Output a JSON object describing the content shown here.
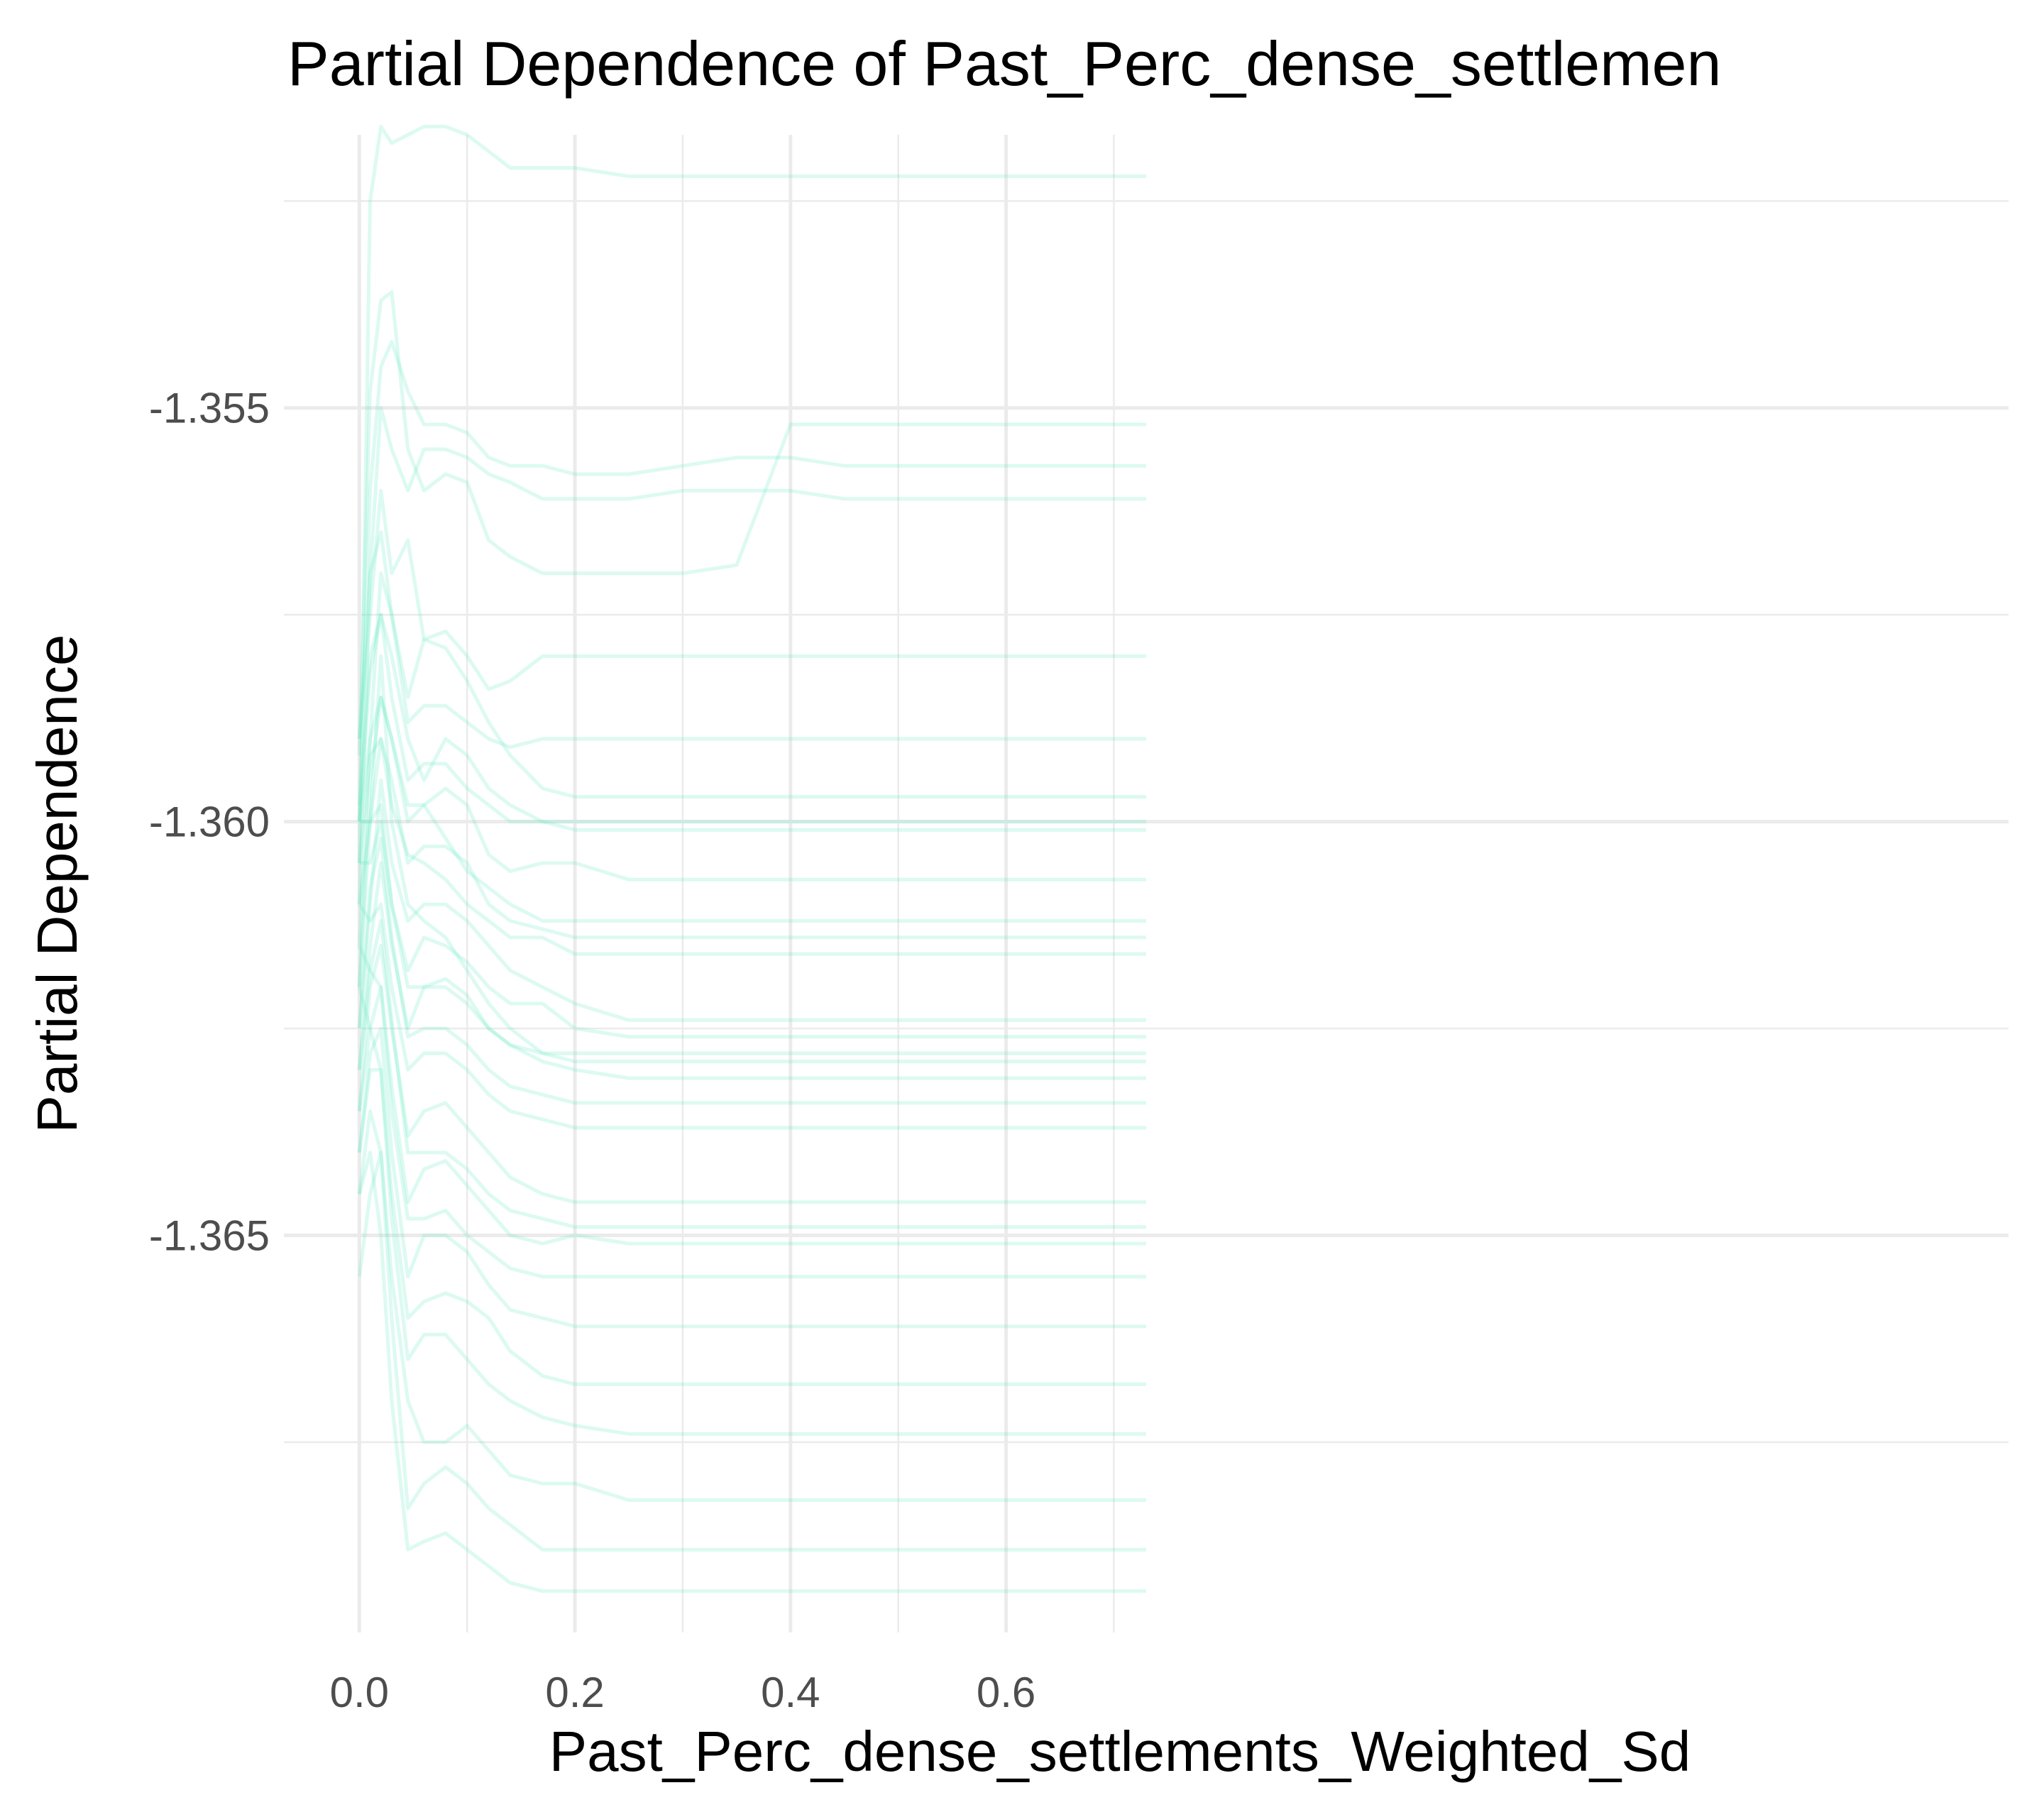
{
  "chart_data": {
    "type": "line",
    "title": "Partial Dependence of Past_Perc_dense_settlemen",
    "xlabel": "Past_Perc_dense_settlements_Weighted_Sd",
    "ylabel": "Partial Dependence",
    "xlim": [
      -0.07,
      1.53
    ],
    "ylim": [
      -1.3698,
      -1.3517
    ],
    "x_ticks": [
      0.0,
      0.2,
      0.4,
      0.6
    ],
    "x_tick_labels": [
      "0.0",
      "0.2",
      "0.4",
      "0.6"
    ],
    "y_ticks": [
      -1.355,
      -1.36,
      -1.365
    ],
    "y_tick_labels": [
      "-1.355",
      "-1.360",
      "-1.365"
    ],
    "grid": true,
    "legend": "none",
    "line_color": "#5fe8bd",
    "x": [
      0.0,
      0.01,
      0.02,
      0.03,
      0.045,
      0.06,
      0.08,
      0.1,
      0.12,
      0.14,
      0.17,
      0.2,
      0.25,
      0.3,
      0.35,
      0.4,
      0.45,
      0.5,
      0.55,
      0.6,
      0.65,
      0.7,
      0.73
    ],
    "series": [
      {
        "values": [
          -1.3605,
          -1.3525,
          -1.3516,
          -1.3518,
          -1.3517,
          -1.3516,
          -1.3516,
          -1.3517,
          -1.3519,
          -1.3521,
          -1.3521,
          -1.3521,
          -1.3522,
          -1.3522,
          -1.3522,
          -1.3522,
          -1.3522,
          -1.3522,
          -1.3522,
          -1.3522,
          -1.3522,
          -1.3522,
          -1.3522
        ]
      },
      {
        "values": [
          -1.3592,
          -1.3548,
          -1.3537,
          -1.3536,
          -1.3555,
          -1.356,
          -1.3558,
          -1.3559,
          -1.3566,
          -1.3568,
          -1.357,
          -1.357,
          -1.357,
          -1.357,
          -1.3569,
          -1.3552,
          -1.3552,
          -1.3552,
          -1.3552,
          -1.3552,
          -1.3552,
          -1.3552,
          -1.3552
        ]
      },
      {
        "values": [
          -1.36,
          -1.356,
          -1.3545,
          -1.3542,
          -1.3548,
          -1.3552,
          -1.3552,
          -1.3553,
          -1.3556,
          -1.3557,
          -1.3557,
          -1.3558,
          -1.3558,
          -1.3557,
          -1.3556,
          -1.3556,
          -1.3557,
          -1.3557,
          -1.3557,
          -1.3557,
          -1.3557,
          -1.3557,
          -1.3557
        ]
      },
      {
        "values": [
          -1.361,
          -1.357,
          -1.355,
          -1.3555,
          -1.356,
          -1.3555,
          -1.3555,
          -1.3556,
          -1.3558,
          -1.3559,
          -1.3561,
          -1.3561,
          -1.3561,
          -1.356,
          -1.356,
          -1.356,
          -1.3561,
          -1.3561,
          -1.3561,
          -1.3561,
          -1.3561,
          -1.3561,
          -1.3561
        ]
      },
      {
        "values": [
          -1.359,
          -1.3575,
          -1.356,
          -1.357,
          -1.3566,
          -1.3578,
          -1.3577,
          -1.358,
          -1.3584,
          -1.3583,
          -1.358,
          -1.358,
          -1.358,
          -1.358,
          -1.358,
          -1.358,
          -1.358,
          -1.358,
          -1.358,
          -1.358,
          -1.358,
          -1.358,
          -1.358
        ]
      },
      {
        "values": [
          -1.3615,
          -1.359,
          -1.357,
          -1.3575,
          -1.3585,
          -1.3578,
          -1.3579,
          -1.3583,
          -1.3588,
          -1.3592,
          -1.3596,
          -1.3597,
          -1.3597,
          -1.3597,
          -1.3597,
          -1.3597,
          -1.3597,
          -1.3597,
          -1.3597,
          -1.3597,
          -1.3597,
          -1.3597,
          -1.3597
        ]
      },
      {
        "values": [
          -1.3598,
          -1.358,
          -1.3575,
          -1.358,
          -1.359,
          -1.3595,
          -1.359,
          -1.3592,
          -1.3596,
          -1.3598,
          -1.36,
          -1.3601,
          -1.3601,
          -1.3601,
          -1.3601,
          -1.3601,
          -1.3601,
          -1.3601,
          -1.3601,
          -1.3601,
          -1.3601,
          -1.3601,
          -1.3601
        ]
      },
      {
        "values": [
          -1.362,
          -1.3595,
          -1.3585,
          -1.359,
          -1.36,
          -1.3598,
          -1.3596,
          -1.3598,
          -1.3604,
          -1.3606,
          -1.3605,
          -1.3605,
          -1.3607,
          -1.3607,
          -1.3607,
          -1.3607,
          -1.3607,
          -1.3607,
          -1.3607,
          -1.3607,
          -1.3607,
          -1.3607,
          -1.3607
        ]
      },
      {
        "values": [
          -1.36,
          -1.36,
          -1.359,
          -1.3595,
          -1.3605,
          -1.3603,
          -1.3603,
          -1.3605,
          -1.361,
          -1.3612,
          -1.3613,
          -1.3614,
          -1.3614,
          -1.3614,
          -1.3614,
          -1.3614,
          -1.3614,
          -1.3614,
          -1.3614,
          -1.3614,
          -1.3614,
          -1.3614,
          -1.3614
        ]
      },
      {
        "values": [
          -1.3625,
          -1.361,
          -1.3595,
          -1.3605,
          -1.3612,
          -1.361,
          -1.361,
          -1.3612,
          -1.3615,
          -1.3618,
          -1.362,
          -1.3622,
          -1.3624,
          -1.3624,
          -1.3624,
          -1.3624,
          -1.3624,
          -1.3624,
          -1.3624,
          -1.3624,
          -1.3624,
          -1.3624,
          -1.3624
        ]
      },
      {
        "values": [
          -1.3605,
          -1.3605,
          -1.36,
          -1.361,
          -1.3618,
          -1.3614,
          -1.3615,
          -1.3617,
          -1.362,
          -1.3622,
          -1.3622,
          -1.3625,
          -1.3626,
          -1.3626,
          -1.3626,
          -1.3626,
          -1.3626,
          -1.3626,
          -1.3626,
          -1.3626,
          -1.3626,
          -1.3626,
          -1.3626
        ]
      },
      {
        "values": [
          -1.363,
          -1.3615,
          -1.3605,
          -1.3615,
          -1.3625,
          -1.362,
          -1.3619,
          -1.3621,
          -1.3625,
          -1.3627,
          -1.3629,
          -1.363,
          -1.3631,
          -1.3631,
          -1.3631,
          -1.3631,
          -1.3631,
          -1.3631,
          -1.3631,
          -1.3631,
          -1.3631,
          -1.3631,
          -1.3631
        ]
      },
      {
        "values": [
          -1.361,
          -1.3612,
          -1.361,
          -1.362,
          -1.363,
          -1.3628,
          -1.3628,
          -1.363,
          -1.3633,
          -1.3635,
          -1.3636,
          -1.3637,
          -1.3637,
          -1.3637,
          -1.3637,
          -1.3637,
          -1.3637,
          -1.3637,
          -1.3637,
          -1.3637,
          -1.3637,
          -1.3637,
          -1.3637
        ]
      },
      {
        "values": [
          -1.3635,
          -1.362,
          -1.3615,
          -1.3625,
          -1.3638,
          -1.3635,
          -1.3634,
          -1.3637,
          -1.364,
          -1.3643,
          -1.3645,
          -1.3646,
          -1.3646,
          -1.3646,
          -1.3646,
          -1.3646,
          -1.3646,
          -1.3646,
          -1.3646,
          -1.3646,
          -1.3646,
          -1.3646,
          -1.3646
        ]
      },
      {
        "values": [
          -1.3615,
          -1.3618,
          -1.362,
          -1.3632,
          -1.3646,
          -1.3642,
          -1.3641,
          -1.3644,
          -1.3647,
          -1.365,
          -1.3651,
          -1.365,
          -1.3651,
          -1.3651,
          -1.3651,
          -1.3651,
          -1.3651,
          -1.3651,
          -1.3651,
          -1.3651,
          -1.3651,
          -1.3651,
          -1.3651
        ]
      },
      {
        "values": [
          -1.364,
          -1.3628,
          -1.3625,
          -1.364,
          -1.3655,
          -1.365,
          -1.365,
          -1.3652,
          -1.3656,
          -1.3659,
          -1.366,
          -1.3661,
          -1.3661,
          -1.3661,
          -1.3661,
          -1.3661,
          -1.3661,
          -1.3661,
          -1.3661,
          -1.3661,
          -1.3661,
          -1.3661,
          -1.3661
        ]
      },
      {
        "values": [
          -1.362,
          -1.3625,
          -1.363,
          -1.3648,
          -1.3665,
          -1.3662,
          -1.3662,
          -1.3665,
          -1.3668,
          -1.367,
          -1.3672,
          -1.3673,
          -1.3674,
          -1.3674,
          -1.3674,
          -1.3674,
          -1.3674,
          -1.3674,
          -1.3674,
          -1.3674,
          -1.3674,
          -1.3674,
          -1.3674
        ]
      },
      {
        "values": [
          -1.3645,
          -1.3635,
          -1.364,
          -1.3655,
          -1.367,
          -1.3675,
          -1.3675,
          -1.3673,
          -1.3676,
          -1.3679,
          -1.368,
          -1.368,
          -1.3682,
          -1.3682,
          -1.3682,
          -1.3682,
          -1.3682,
          -1.3682,
          -1.3682,
          -1.3682,
          -1.3682,
          -1.3682,
          -1.3682
        ]
      },
      {
        "values": [
          -1.3655,
          -1.3645,
          -1.364,
          -1.366,
          -1.3683,
          -1.368,
          -1.3678,
          -1.368,
          -1.3683,
          -1.3685,
          -1.3688,
          -1.3688,
          -1.3688,
          -1.3688,
          -1.3688,
          -1.3688,
          -1.3688,
          -1.3688,
          -1.3688,
          -1.3688,
          -1.3688,
          -1.3688,
          -1.3688
        ]
      },
      {
        "values": [
          -1.36,
          -1.359,
          -1.3585,
          -1.359,
          -1.3598,
          -1.3598,
          -1.3602,
          -1.3606,
          -1.3608,
          -1.361,
          -1.3612,
          -1.3612,
          -1.3612,
          -1.3612,
          -1.3612,
          -1.3612,
          -1.3612,
          -1.3612,
          -1.3612,
          -1.3612,
          -1.3612,
          -1.3612,
          -1.3612
        ]
      },
      {
        "values": [
          -1.361,
          -1.36,
          -1.358,
          -1.36,
          -1.361,
          -1.3612,
          -1.3614,
          -1.3618,
          -1.3622,
          -1.3625,
          -1.3628,
          -1.3629,
          -1.3629,
          -1.3629,
          -1.3629,
          -1.3629,
          -1.3629,
          -1.3629,
          -1.3629,
          -1.3629,
          -1.3629,
          -1.3629,
          -1.3629
        ]
      },
      {
        "values": [
          -1.36,
          -1.3582,
          -1.3575,
          -1.3585,
          -1.3595,
          -1.3593,
          -1.3593,
          -1.3596,
          -1.3598,
          -1.36,
          -1.36,
          -1.36,
          -1.36,
          -1.36,
          -1.36,
          -1.36,
          -1.36,
          -1.36,
          -1.36,
          -1.36,
          -1.36,
          -1.36,
          -1.36
        ]
      },
      {
        "values": [
          -1.3605,
          -1.3592,
          -1.359,
          -1.3598,
          -1.3604,
          -1.3605,
          -1.3607,
          -1.361,
          -1.3612,
          -1.3614,
          -1.3614,
          -1.3616,
          -1.3616,
          -1.3616,
          -1.3616,
          -1.3616,
          -1.3616,
          -1.3616,
          -1.3616,
          -1.3616,
          -1.3616,
          -1.3616,
          -1.3616
        ]
      },
      {
        "values": [
          -1.3625,
          -1.3608,
          -1.3602,
          -1.3614,
          -1.3626,
          -1.3625,
          -1.3625,
          -1.3627,
          -1.363,
          -1.3632,
          -1.3633,
          -1.3634,
          -1.3634,
          -1.3634,
          -1.3634,
          -1.3634,
          -1.3634,
          -1.3634,
          -1.3634,
          -1.3634,
          -1.3634,
          -1.3634,
          -1.3634
        ]
      },
      {
        "values": [
          -1.363,
          -1.3618,
          -1.3612,
          -1.3624,
          -1.364,
          -1.364,
          -1.364,
          -1.3642,
          -1.3645,
          -1.3647,
          -1.3648,
          -1.3649,
          -1.3649,
          -1.3649,
          -1.3649,
          -1.3649,
          -1.3649,
          -1.3649,
          -1.3649,
          -1.3649,
          -1.3649,
          -1.3649,
          -1.3649
        ]
      },
      {
        "values": [
          -1.364,
          -1.363,
          -1.363,
          -1.3645,
          -1.366,
          -1.3658,
          -1.3657,
          -1.3658,
          -1.366,
          -1.3664,
          -1.3667,
          -1.3668,
          -1.3668,
          -1.3668,
          -1.3668,
          -1.3668,
          -1.3668,
          -1.3668,
          -1.3668,
          -1.3668,
          -1.3668,
          -1.3668,
          -1.3668
        ]
      },
      {
        "values": [
          -1.3645,
          -1.364,
          -1.365,
          -1.367,
          -1.3688,
          -1.3687,
          -1.3686,
          -1.3688,
          -1.369,
          -1.3692,
          -1.3693,
          -1.3693,
          -1.3693,
          -1.3693,
          -1.3693,
          -1.3693,
          -1.3693,
          -1.3693,
          -1.3693,
          -1.3693,
          -1.3693,
          -1.3693,
          -1.3693
        ]
      },
      {
        "values": [
          -1.359,
          -1.357,
          -1.3565,
          -1.3575,
          -1.3588,
          -1.3586,
          -1.3586,
          -1.3588,
          -1.359,
          -1.3591,
          -1.359,
          -1.359,
          -1.359,
          -1.359,
          -1.359,
          -1.359,
          -1.359,
          -1.359,
          -1.359,
          -1.359,
          -1.359,
          -1.359,
          -1.359
        ]
      },
      {
        "values": [
          -1.362,
          -1.36,
          -1.3598,
          -1.361,
          -1.362,
          -1.362,
          -1.362,
          -1.3622,
          -1.3625,
          -1.3627,
          -1.3628,
          -1.3628,
          -1.3628,
          -1.3628,
          -1.3628,
          -1.3628,
          -1.3628,
          -1.3628,
          -1.3628,
          -1.3628,
          -1.3628,
          -1.3628,
          -1.3628
        ]
      },
      {
        "values": [
          -1.3635,
          -1.3625,
          -1.362,
          -1.3635,
          -1.3648,
          -1.3648,
          -1.3647,
          -1.365,
          -1.3652,
          -1.3654,
          -1.3655,
          -1.3655,
          -1.3655,
          -1.3655,
          -1.3655,
          -1.3655,
          -1.3655,
          -1.3655,
          -1.3655,
          -1.3655,
          -1.3655,
          -1.3655,
          -1.3655
        ]
      }
    ]
  }
}
